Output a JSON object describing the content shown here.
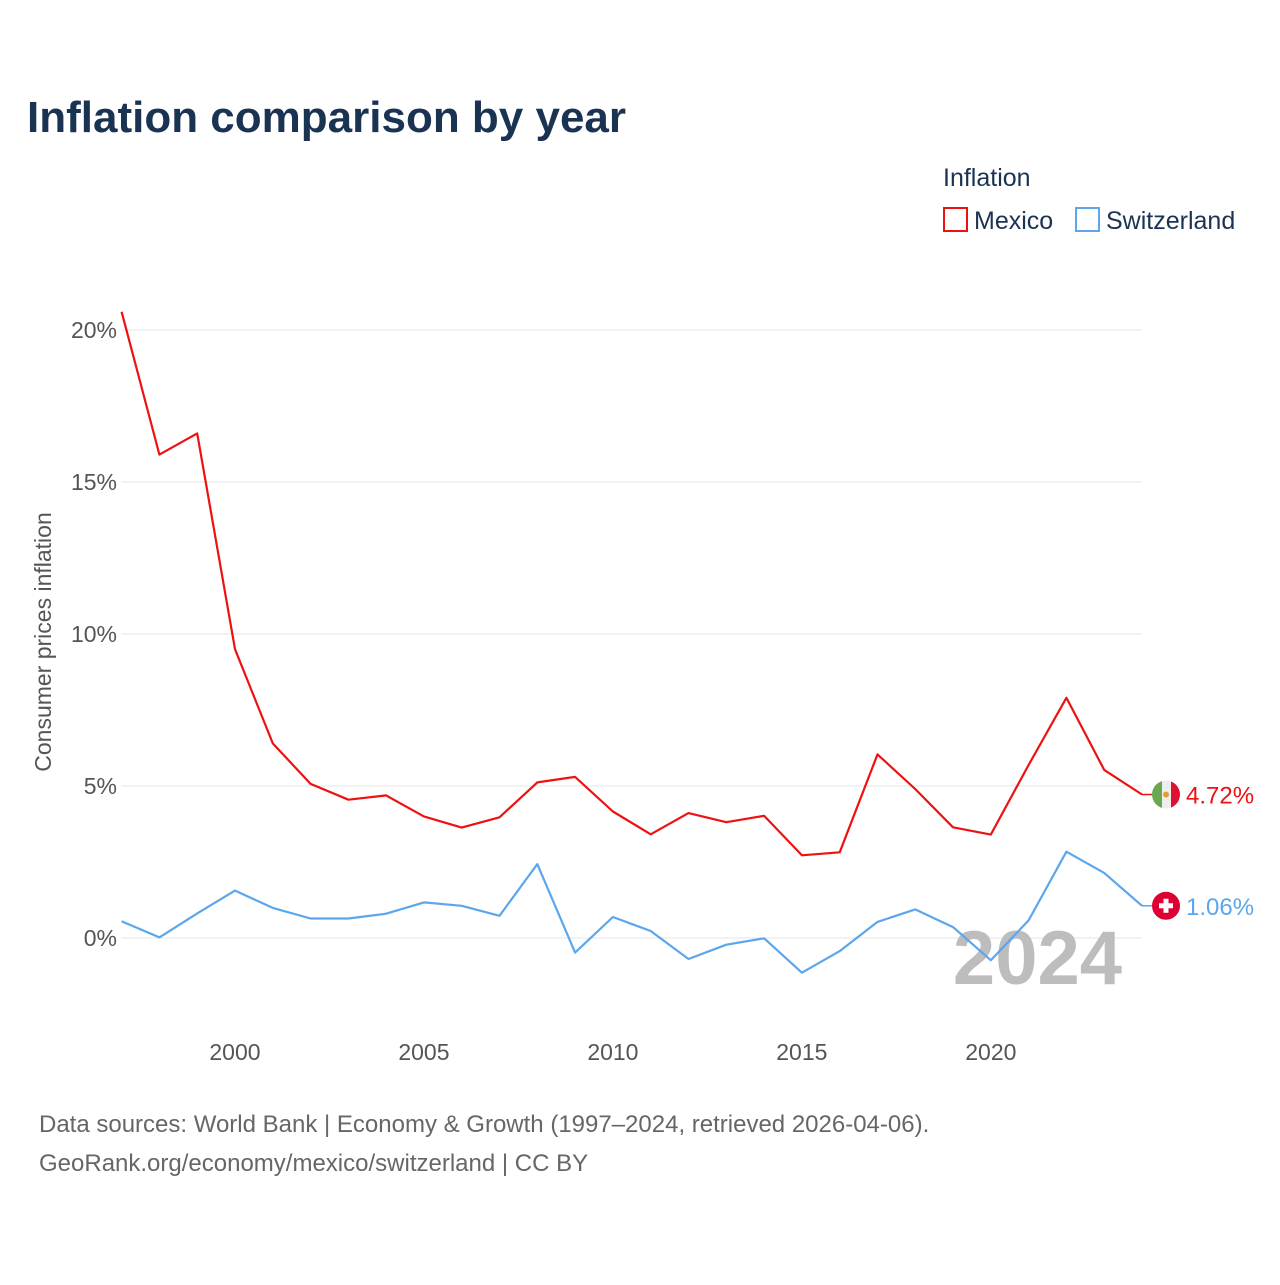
{
  "chart_data": {
    "type": "line",
    "title": "Inflation comparison by year",
    "legend_title": "Inflation",
    "legend_position": "top-right",
    "ylabel": "Consumer prices inflation",
    "xlabel": "",
    "xlim": [
      1997,
      2024
    ],
    "ylim": [
      -2.5,
      21
    ],
    "y_ticks": [
      0,
      5,
      10,
      15,
      20
    ],
    "y_tick_labels": [
      "0%",
      "5%",
      "10%",
      "15%",
      "20%"
    ],
    "x_ticks": [
      2000,
      2005,
      2010,
      2015,
      2020
    ],
    "x_tick_labels": [
      "2000",
      "2005",
      "2010",
      "2015",
      "2020"
    ],
    "grid": true,
    "watermark_year": "2024",
    "x": [
      1997,
      1998,
      1999,
      2000,
      2001,
      2002,
      2003,
      2004,
      2005,
      2006,
      2007,
      2008,
      2009,
      2010,
      2011,
      2012,
      2013,
      2014,
      2015,
      2016,
      2017,
      2018,
      2019,
      2020,
      2021,
      2022,
      2023,
      2024
    ],
    "series": [
      {
        "name": "Mexico",
        "color": "#ee1111",
        "flag": "mexico-flag",
        "end_label": "4.72%",
        "values": [
          20.6,
          15.9,
          16.6,
          9.5,
          6.4,
          5.07,
          4.55,
          4.69,
          4.0,
          3.63,
          3.97,
          5.12,
          5.3,
          4.16,
          3.41,
          4.11,
          3.81,
          4.02,
          2.72,
          2.82,
          6.04,
          4.9,
          3.64,
          3.4,
          5.69,
          7.9,
          5.53,
          4.72
        ]
      },
      {
        "name": "Switzerland",
        "color": "#5ba6ec",
        "flag": "switzerland-flag",
        "end_label": "1.06%",
        "values": [
          0.55,
          0.02,
          0.81,
          1.56,
          0.99,
          0.64,
          0.64,
          0.8,
          1.17,
          1.06,
          0.73,
          2.43,
          -0.48,
          0.69,
          0.23,
          -0.69,
          -0.22,
          -0.01,
          -1.14,
          -0.43,
          0.53,
          0.94,
          0.36,
          -0.73,
          0.58,
          2.84,
          2.14,
          1.06
        ]
      }
    ]
  },
  "footer": {
    "line1": "Data sources: World Bank | Economy & Growth (1997–2024, retrieved 2026-04-06).",
    "line2": "GeoRank.org/economy/mexico/switzerland | CC BY"
  }
}
